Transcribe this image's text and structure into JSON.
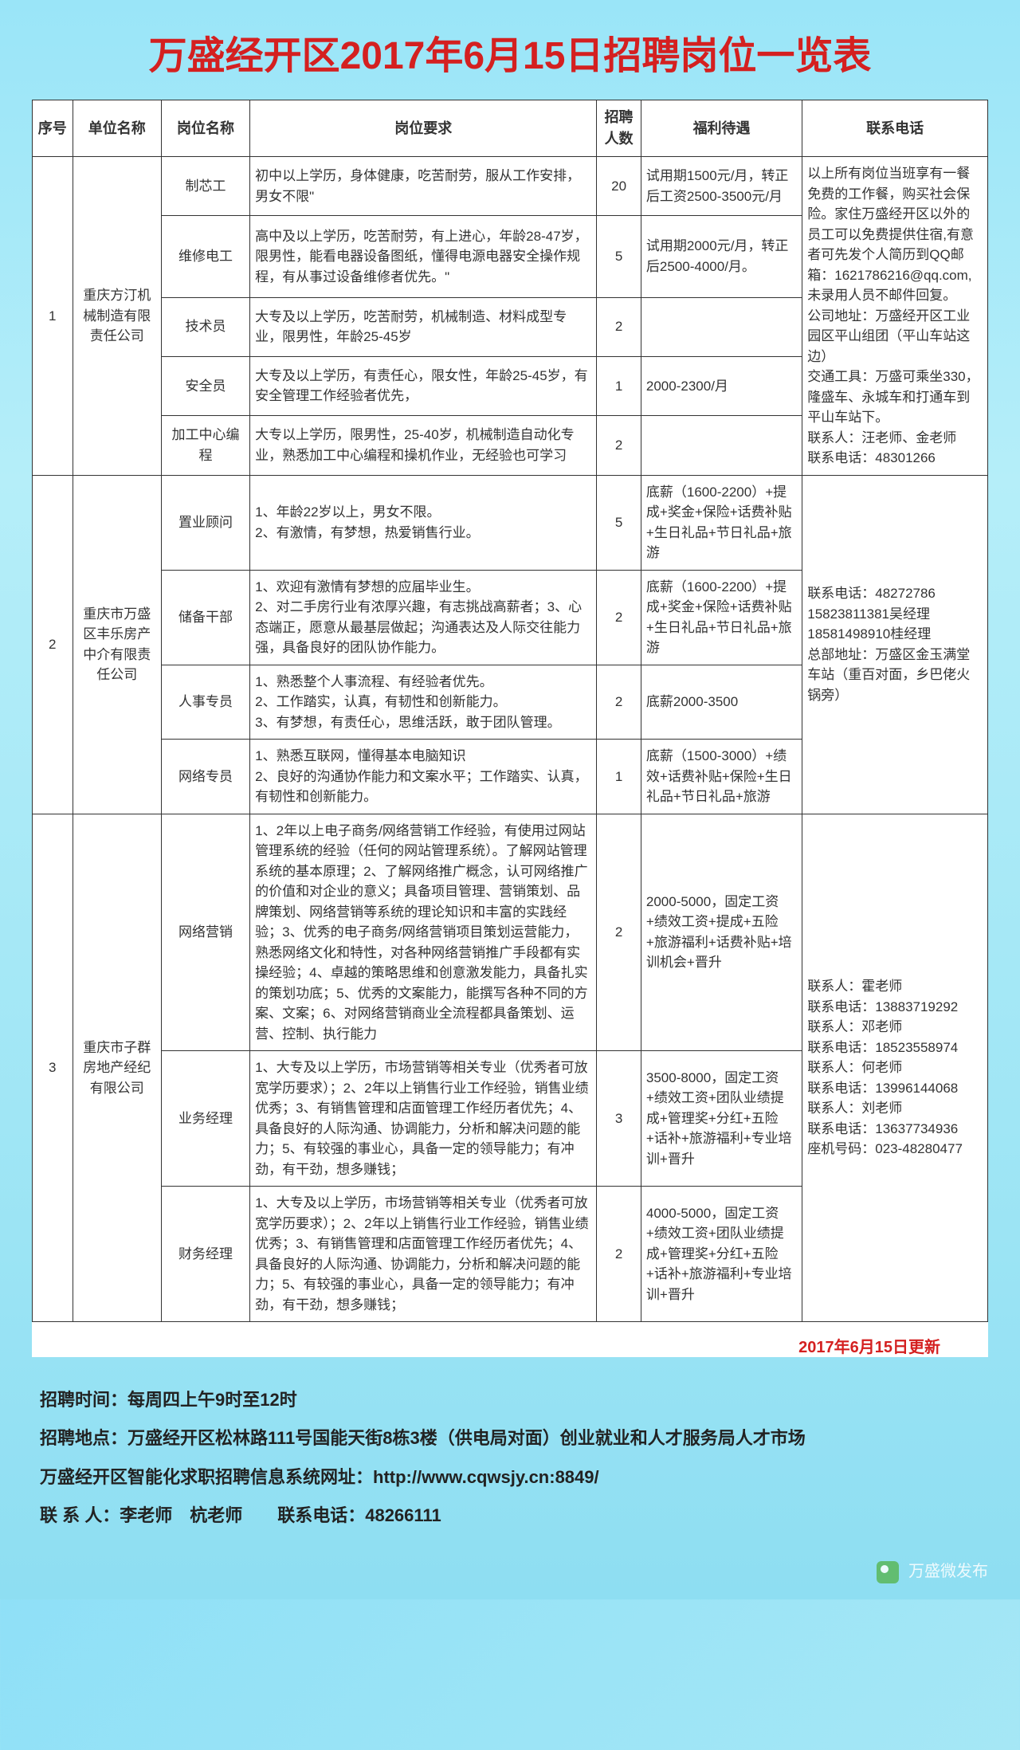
{
  "title": "万盛经开区2017年6月15日招聘岗位一览表",
  "headers": {
    "num": "序号",
    "company": "单位名称",
    "post": "岗位名称",
    "req": "岗位要求",
    "count": "招聘人数",
    "benefit": "福利待遇",
    "contact": "联系电话"
  },
  "companies": [
    {
      "num": "1",
      "name": "重庆方汀机械制造有限责任公司",
      "contact": "以上所有岗位当班享有一餐免费的工作餐，购买社会保险。家住万盛经开区以外的员工可以免费提供住宿,有意者可先发个人简历到QQ邮箱：1621786216@qq.com,未录用人员不邮件回复。\n公司地址：万盛经开区工业园区平山组团（平山车站这边）\n交通工具：万盛可乘坐330，隆盛车、永城车和打通车到平山车站下。\n联系人：汪老师、金老师　联系电话：48301266",
      "posts": [
        {
          "name": "制芯工",
          "req": "初中以上学历，身体健康，吃苦耐劳，服从工作安排，男女不限\"",
          "count": "20",
          "benefit": "试用期1500元/月，转正后工资2500-3500元/月"
        },
        {
          "name": "维修电工",
          "req": "高中及以上学历，吃苦耐劳，有上进心，年龄28-47岁，限男性，能看电器设备图纸，懂得电源电器安全操作规程，有从事过设备维修者优先。\"",
          "count": "5",
          "benefit": "试用期2000元/月，转正后2500-4000/月。"
        },
        {
          "name": "技术员",
          "req": "大专及以上学历，吃苦耐劳，机械制造、材料成型专业，限男性，年龄25-45岁",
          "count": "2",
          "benefit": ""
        },
        {
          "name": "安全员",
          "req": "大专及以上学历，有责任心，限女性，年龄25-45岁，有安全管理工作经验者优先，",
          "count": "1",
          "benefit": "2000-2300/月"
        },
        {
          "name": "加工中心编程",
          "req": "大专以上学历，限男性，25-40岁，机械制造自动化专业，熟悉加工中心编程和操机作业，无经验也可学习",
          "count": "2",
          "benefit": ""
        }
      ]
    },
    {
      "num": "2",
      "name": "重庆市万盛区丰乐房产中介有限责任公司",
      "contact": "联系电话：48272786\n15823811381吴经理\n18581498910桂经理\n总部地址：万盛区金玉满堂车站（重百对面，乡巴佬火锅旁）",
      "posts": [
        {
          "name": "置业顾问",
          "req": "1、年龄22岁以上，男女不限。\n2、有激情，有梦想，热爱销售行业。",
          "count": "5",
          "benefit": "底薪（1600-2200）+提成+奖金+保险+话费补贴+生日礼品+节日礼品+旅游"
        },
        {
          "name": "储备干部",
          "req": "1、欢迎有激情有梦想的应届毕业生。\n2、对二手房行业有浓厚兴趣，有志挑战高薪者；3、心态端正，愿意从最基层做起；沟通表达及人际交往能力强，具备良好的团队协作能力。",
          "count": "2",
          "benefit": "底薪（1600-2200）+提成+奖金+保险+话费补贴+生日礼品+节日礼品+旅游"
        },
        {
          "name": "人事专员",
          "req": "1、熟悉整个人事流程、有经验者优先。\n2、工作踏实，认真，有韧性和创新能力。\n3、有梦想，有责任心，思维活跃，敢于团队管理。",
          "count": "2",
          "benefit": "底薪2000-3500"
        },
        {
          "name": "网络专员",
          "req": "1、熟悉互联网，懂得基本电脑知识\n2、良好的沟通协作能力和文案水平；工作踏实、认真，有韧性和创新能力。",
          "count": "1",
          "benefit": "底薪（1500-3000）+绩效+话费补贴+保险+生日礼品+节日礼品+旅游"
        }
      ]
    },
    {
      "num": "3",
      "name": "重庆市子群房地产经纪有限公司",
      "contact": "联系人：霍老师\n联系电话：13883719292\n联系人：邓老师\n联系电话：18523558974\n联系人：何老师\n联系电话：13996144068\n联系人：刘老师\n联系电话：13637734936\n座机号码：023-48280477",
      "posts": [
        {
          "name": "网络营销",
          "req": "1、2年以上电子商务/网络营销工作经验，有使用过网站管理系统的经验（任何的网站管理系统）。了解网站管理系统的基本原理；2、了解网络推广概念，认可网络推广的价值和对企业的意义；具备项目管理、营销策划、品牌策划、网络营销等系统的理论知识和丰富的实践经验；3、优秀的电子商务/网络营销项目策划运营能力，熟悉网络文化和特性，对各种网络营销推广手段都有实操经验；4、卓越的策略思维和创意激发能力，具备扎实的策划功底；5、优秀的文案能力，能撰写各种不同的方案、文案；6、对网络营销商业全流程都具备策划、运营、控制、执行能力",
          "count": "2",
          "benefit": "2000-5000，固定工资+绩效工资+提成+五险+旅游福利+话费补贴+培训机会+晋升"
        },
        {
          "name": "业务经理",
          "req": "1、大专及以上学历，市场营销等相关专业（优秀者可放宽学历要求）；2、2年以上销售行业工作经验，销售业绩优秀；3、有销售管理和店面管理工作经历者优先；4、具备良好的人际沟通、协调能力，分析和解决问题的能力；5、有较强的事业心，具备一定的领导能力；有冲劲，有干劲，想多赚钱；",
          "count": "3",
          "benefit": "3500-8000，固定工资+绩效工资+团队业绩提成+管理奖+分红+五险+话补+旅游福利+专业培训+晋升"
        },
        {
          "name": "财务经理",
          "req": "1、大专及以上学历，市场营销等相关专业（优秀者可放宽学历要求）；2、2年以上销售行业工作经验，销售业绩优秀；3、有销售管理和店面管理工作经历者优先；4、具备良好的人际沟通、协调能力，分析和解决问题的能力；5、有较强的事业心，具备一定的领导能力；有冲劲，有干劲，想多赚钱；",
          "count": "2",
          "benefit": "4000-5000，固定工资+绩效工资+团队业绩提成+管理奖+分红+五险+话补+旅游福利+专业培训+晋升"
        }
      ]
    }
  ],
  "update_note": "2017年6月15日更新",
  "footer": {
    "line1": "招聘时间：每周四上午9时至12时",
    "line2": "招聘地点：万盛经开区松林路111号国能天街8栋3楼（供电局对面）创业就业和人才服务局人才市场",
    "line3": "万盛经开区智能化求职招聘信息系统网址：http://www.cqwsjy.cn:8849/",
    "line4": "联 系 人：李老师　杭老师　　联系电话：48266111"
  },
  "watermark": "万盛微发布"
}
